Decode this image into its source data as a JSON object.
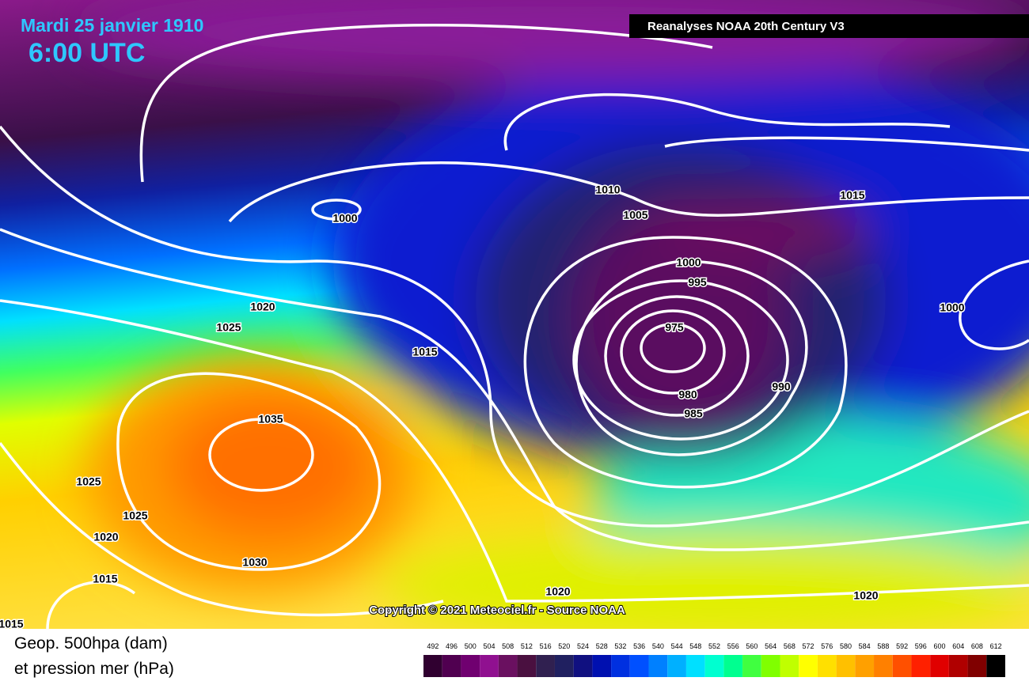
{
  "header": {
    "date": "Mardi 25 janvier 1910",
    "time": "6:00 UTC",
    "source": "Reanalyses NOAA 20th Century V3"
  },
  "copyright": "Copyright © 2021 Meteociel.fr - Source NOAA",
  "legend": {
    "title_lines": [
      "Geop. 500hpa (dam)",
      "et pression mer (hPa)"
    ],
    "scale": [
      492,
      496,
      500,
      504,
      508,
      512,
      516,
      520,
      524,
      528,
      532,
      536,
      540,
      544,
      548,
      552,
      556,
      560,
      564,
      568,
      572,
      576,
      580,
      584,
      588,
      592,
      596,
      600,
      604,
      608,
      612
    ],
    "colors": [
      "#300030",
      "#500050",
      "#700070",
      "#901090",
      "#6a1060",
      "#4a1040",
      "#302050",
      "#202060",
      "#101080",
      "#0010b0",
      "#0030e0",
      "#0050ff",
      "#0080ff",
      "#00b0ff",
      "#00e0ff",
      "#00ffd0",
      "#00ff90",
      "#40ff40",
      "#80ff00",
      "#c0ff00",
      "#ffff00",
      "#ffe000",
      "#ffc000",
      "#ffa000",
      "#ff8000",
      "#ff5000",
      "#ff2000",
      "#e00000",
      "#b00000",
      "#800000",
      "#000000"
    ]
  },
  "isobar_labels": [
    1000,
    1010,
    1005,
    1015,
    1000,
    995,
    975,
    980,
    985,
    990,
    1000,
    1020,
    1025,
    1015,
    1035,
    1025,
    1025,
    1020,
    1030,
    1015,
    1020,
    1020,
    1015
  ]
}
